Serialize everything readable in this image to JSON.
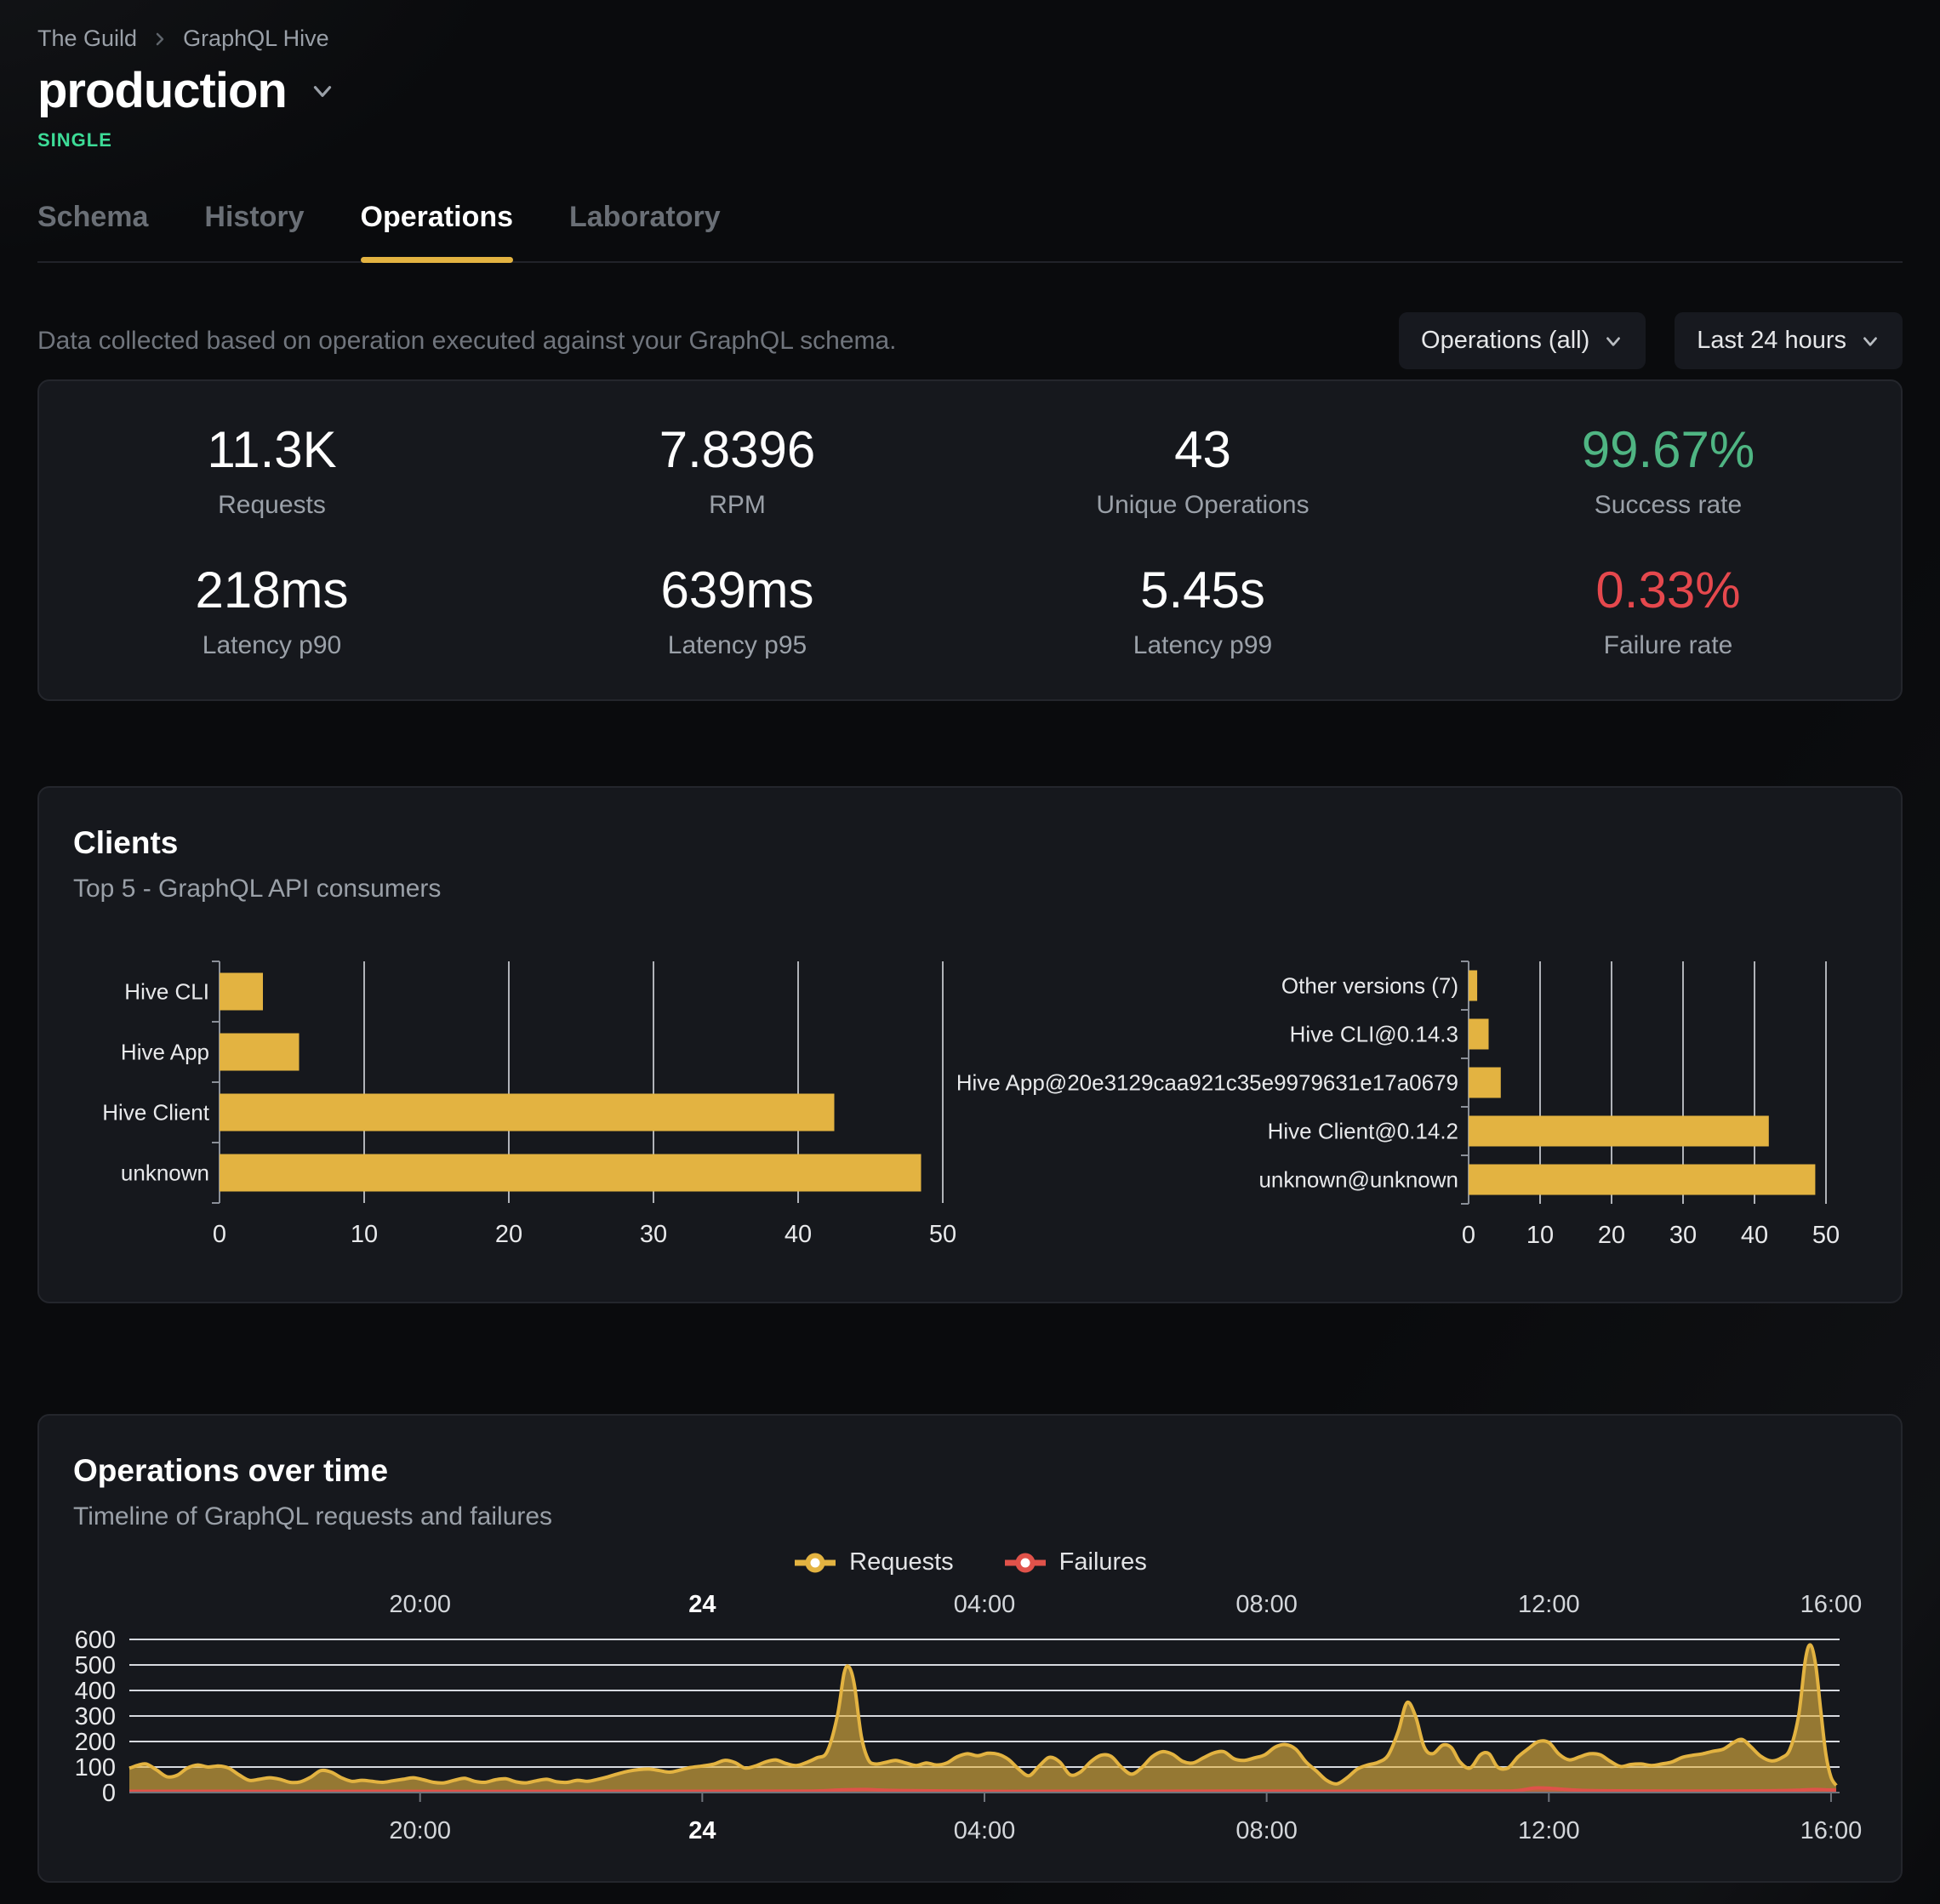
{
  "breadcrumb": {
    "org": "The Guild",
    "project": "GraphQL Hive"
  },
  "target": {
    "name": "production",
    "badge": "SINGLE"
  },
  "tabs": [
    {
      "label": "Schema"
    },
    {
      "label": "History"
    },
    {
      "label": "Operations"
    },
    {
      "label": "Laboratory"
    }
  ],
  "toolbar": {
    "description": "Data collected based on operation executed against your GraphQL schema.",
    "filters": [
      {
        "label": "Operations (all)"
      },
      {
        "label": "Last 24 hours"
      }
    ]
  },
  "stats": [
    {
      "value": "11.3K",
      "label": "Requests"
    },
    {
      "value": "7.8396",
      "label": "RPM"
    },
    {
      "value": "43",
      "label": "Unique Operations"
    },
    {
      "value": "99.67%",
      "label": "Success rate",
      "color": "#4fb583"
    },
    {
      "value": "218ms",
      "label": "Latency p90"
    },
    {
      "value": "639ms",
      "label": "Latency p95"
    },
    {
      "value": "5.45s",
      "label": "Latency p99"
    },
    {
      "value": "0.33%",
      "label": "Failure rate",
      "color": "#e5484d"
    }
  ],
  "clients_panel": {
    "title": "Clients",
    "subtitle": "Top 5 - GraphQL API consumers"
  },
  "operations_panel": {
    "title": "Operations over time",
    "subtitle": "Timeline of GraphQL requests and failures",
    "legend": [
      {
        "label": "Requests",
        "color": "#e3b341"
      },
      {
        "label": "Failures",
        "color": "#e0524a"
      }
    ]
  },
  "chart_data": [
    {
      "type": "bar",
      "orientation": "horizontal",
      "title": "Clients by name",
      "categories": [
        "Hive CLI",
        "Hive App",
        "Hive Client",
        "unknown"
      ],
      "values": [
        3,
        5.5,
        42.5,
        48.5
      ],
      "xlim": [
        0,
        50
      ],
      "xticks": [
        0,
        10,
        20,
        30,
        40,
        50
      ],
      "bar_color": "#e3b341",
      "grid": true
    },
    {
      "type": "bar",
      "orientation": "horizontal",
      "title": "Clients by version",
      "categories": [
        "Other versions (7)",
        "Hive CLI@0.14.3",
        "Hive App@20e3129caa921c35e9979631e17a0679",
        "Hive Client@0.14.2",
        "unknown@unknown"
      ],
      "values": [
        1.2,
        2.8,
        4.5,
        42,
        48.5
      ],
      "xlim": [
        0,
        50
      ],
      "xticks": [
        0,
        10,
        20,
        30,
        40,
        50
      ],
      "bar_color": "#e3b341",
      "grid": true
    },
    {
      "type": "area",
      "title": "Operations over time",
      "ylim": [
        0,
        600
      ],
      "yticks": [
        0,
        100,
        200,
        300,
        400,
        500,
        600
      ],
      "grid": true,
      "legend_position": "top-center",
      "xticks": [
        {
          "f": 0.17,
          "label": "20:00"
        },
        {
          "f": 0.335,
          "label": "24",
          "bold": true
        },
        {
          "f": 0.5,
          "label": "04:00"
        },
        {
          "f": 0.665,
          "label": "08:00"
        },
        {
          "f": 0.83,
          "label": "12:00"
        },
        {
          "f": 0.995,
          "label": "16:00"
        }
      ],
      "series": [
        {
          "name": "Requests",
          "color": "#e3b341",
          "fill_opacity": 0.62,
          "points": [
            [
              0.0,
              95
            ],
            [
              0.005,
              107
            ],
            [
              0.01,
              112
            ],
            [
              0.016,
              88
            ],
            [
              0.022,
              62
            ],
            [
              0.028,
              68
            ],
            [
              0.034,
              96
            ],
            [
              0.04,
              108
            ],
            [
              0.046,
              100
            ],
            [
              0.052,
              104
            ],
            [
              0.058,
              96
            ],
            [
              0.064,
              70
            ],
            [
              0.07,
              48
            ],
            [
              0.076,
              52
            ],
            [
              0.082,
              58
            ],
            [
              0.088,
              52
            ],
            [
              0.094,
              40
            ],
            [
              0.1,
              42
            ],
            [
              0.106,
              60
            ],
            [
              0.112,
              86
            ],
            [
              0.118,
              80
            ],
            [
              0.124,
              58
            ],
            [
              0.13,
              44
            ],
            [
              0.136,
              48
            ],
            [
              0.142,
              44
            ],
            [
              0.148,
              40
            ],
            [
              0.154,
              46
            ],
            [
              0.16,
              52
            ],
            [
              0.166,
              58
            ],
            [
              0.172,
              50
            ],
            [
              0.178,
              40
            ],
            [
              0.184,
              38
            ],
            [
              0.19,
              48
            ],
            [
              0.196,
              56
            ],
            [
              0.202,
              44
            ],
            [
              0.208,
              40
            ],
            [
              0.214,
              50
            ],
            [
              0.22,
              54
            ],
            [
              0.226,
              42
            ],
            [
              0.232,
              38
            ],
            [
              0.238,
              46
            ],
            [
              0.244,
              52
            ],
            [
              0.25,
              42
            ],
            [
              0.256,
              40
            ],
            [
              0.262,
              48
            ],
            [
              0.268,
              44
            ],
            [
              0.274,
              52
            ],
            [
              0.28,
              62
            ],
            [
              0.286,
              74
            ],
            [
              0.292,
              84
            ],
            [
              0.298,
              90
            ],
            [
              0.304,
              92
            ],
            [
              0.31,
              86
            ],
            [
              0.316,
              80
            ],
            [
              0.322,
              88
            ],
            [
              0.328,
              98
            ],
            [
              0.335,
              104
            ],
            [
              0.342,
              112
            ],
            [
              0.348,
              126
            ],
            [
              0.354,
              118
            ],
            [
              0.36,
              96
            ],
            [
              0.366,
              104
            ],
            [
              0.372,
              120
            ],
            [
              0.378,
              128
            ],
            [
              0.384,
              114
            ],
            [
              0.39,
              106
            ],
            [
              0.396,
              118
            ],
            [
              0.402,
              136
            ],
            [
              0.408,
              160
            ],
            [
              0.414,
              300
            ],
            [
              0.418,
              470
            ],
            [
              0.421,
              490
            ],
            [
              0.424,
              420
            ],
            [
              0.428,
              220
            ],
            [
              0.432,
              130
            ],
            [
              0.436,
              112
            ],
            [
              0.442,
              118
            ],
            [
              0.448,
              126
            ],
            [
              0.454,
              116
            ],
            [
              0.46,
              106
            ],
            [
              0.466,
              116
            ],
            [
              0.472,
              108
            ],
            [
              0.478,
              116
            ],
            [
              0.484,
              140
            ],
            [
              0.49,
              152
            ],
            [
              0.496,
              144
            ],
            [
              0.502,
              154
            ],
            [
              0.508,
              150
            ],
            [
              0.514,
              130
            ],
            [
              0.52,
              92
            ],
            [
              0.526,
              66
            ],
            [
              0.532,
              104
            ],
            [
              0.538,
              138
            ],
            [
              0.544,
              120
            ],
            [
              0.55,
              70
            ],
            [
              0.556,
              80
            ],
            [
              0.562,
              120
            ],
            [
              0.568,
              146
            ],
            [
              0.574,
              142
            ],
            [
              0.58,
              100
            ],
            [
              0.586,
              72
            ],
            [
              0.592,
              98
            ],
            [
              0.598,
              140
            ],
            [
              0.604,
              160
            ],
            [
              0.61,
              150
            ],
            [
              0.616,
              122
            ],
            [
              0.622,
              116
            ],
            [
              0.628,
              136
            ],
            [
              0.634,
              155
            ],
            [
              0.64,
              160
            ],
            [
              0.646,
              132
            ],
            [
              0.652,
              126
            ],
            [
              0.658,
              136
            ],
            [
              0.664,
              148
            ],
            [
              0.67,
              178
            ],
            [
              0.676,
              188
            ],
            [
              0.682,
              170
            ],
            [
              0.688,
              120
            ],
            [
              0.694,
              85
            ],
            [
              0.7,
              48
            ],
            [
              0.706,
              34
            ],
            [
              0.712,
              58
            ],
            [
              0.718,
              92
            ],
            [
              0.724,
              108
            ],
            [
              0.73,
              118
            ],
            [
              0.736,
              146
            ],
            [
              0.742,
              240
            ],
            [
              0.747,
              352
            ],
            [
              0.752,
              300
            ],
            [
              0.757,
              180
            ],
            [
              0.762,
              152
            ],
            [
              0.768,
              186
            ],
            [
              0.773,
              176
            ],
            [
              0.778,
              120
            ],
            [
              0.784,
              96
            ],
            [
              0.79,
              148
            ],
            [
              0.795,
              152
            ],
            [
              0.8,
              100
            ],
            [
              0.806,
              96
            ],
            [
              0.812,
              140
            ],
            [
              0.818,
              172
            ],
            [
              0.824,
              200
            ],
            [
              0.83,
              196
            ],
            [
              0.836,
              150
            ],
            [
              0.842,
              128
            ],
            [
              0.848,
              140
            ],
            [
              0.854,
              152
            ],
            [
              0.86,
              148
            ],
            [
              0.866,
              122
            ],
            [
              0.872,
              102
            ],
            [
              0.878,
              110
            ],
            [
              0.884,
              112
            ],
            [
              0.89,
              106
            ],
            [
              0.896,
              112
            ],
            [
              0.902,
              120
            ],
            [
              0.908,
              138
            ],
            [
              0.914,
              146
            ],
            [
              0.92,
              152
            ],
            [
              0.926,
              162
            ],
            [
              0.932,
              170
            ],
            [
              0.938,
              196
            ],
            [
              0.943,
              208
            ],
            [
              0.948,
              180
            ],
            [
              0.954,
              142
            ],
            [
              0.96,
              124
            ],
            [
              0.966,
              136
            ],
            [
              0.971,
              170
            ],
            [
              0.976,
              300
            ],
            [
              0.98,
              520
            ],
            [
              0.983,
              578
            ],
            [
              0.986,
              500
            ],
            [
              0.989,
              320
            ],
            [
              0.992,
              150
            ],
            [
              0.995,
              60
            ],
            [
              0.998,
              28
            ]
          ]
        },
        {
          "name": "Failures",
          "color": "#e0524a",
          "fill_opacity": 0.5,
          "points": [
            [
              0.0,
              5
            ],
            [
              0.05,
              5
            ],
            [
              0.1,
              4
            ],
            [
              0.15,
              5
            ],
            [
              0.2,
              4
            ],
            [
              0.25,
              5
            ],
            [
              0.3,
              5
            ],
            [
              0.35,
              5
            ],
            [
              0.4,
              6
            ],
            [
              0.415,
              10
            ],
            [
              0.43,
              12
            ],
            [
              0.45,
              8
            ],
            [
              0.5,
              5
            ],
            [
              0.55,
              5
            ],
            [
              0.6,
              5
            ],
            [
              0.65,
              6
            ],
            [
              0.7,
              5
            ],
            [
              0.75,
              6
            ],
            [
              0.8,
              6
            ],
            [
              0.812,
              8
            ],
            [
              0.822,
              18
            ],
            [
              0.832,
              16
            ],
            [
              0.845,
              10
            ],
            [
              0.86,
              7
            ],
            [
              0.9,
              6
            ],
            [
              0.93,
              6
            ],
            [
              0.96,
              7
            ],
            [
              0.975,
              9
            ],
            [
              0.985,
              12
            ],
            [
              0.992,
              11
            ],
            [
              0.998,
              9
            ]
          ]
        }
      ]
    }
  ]
}
